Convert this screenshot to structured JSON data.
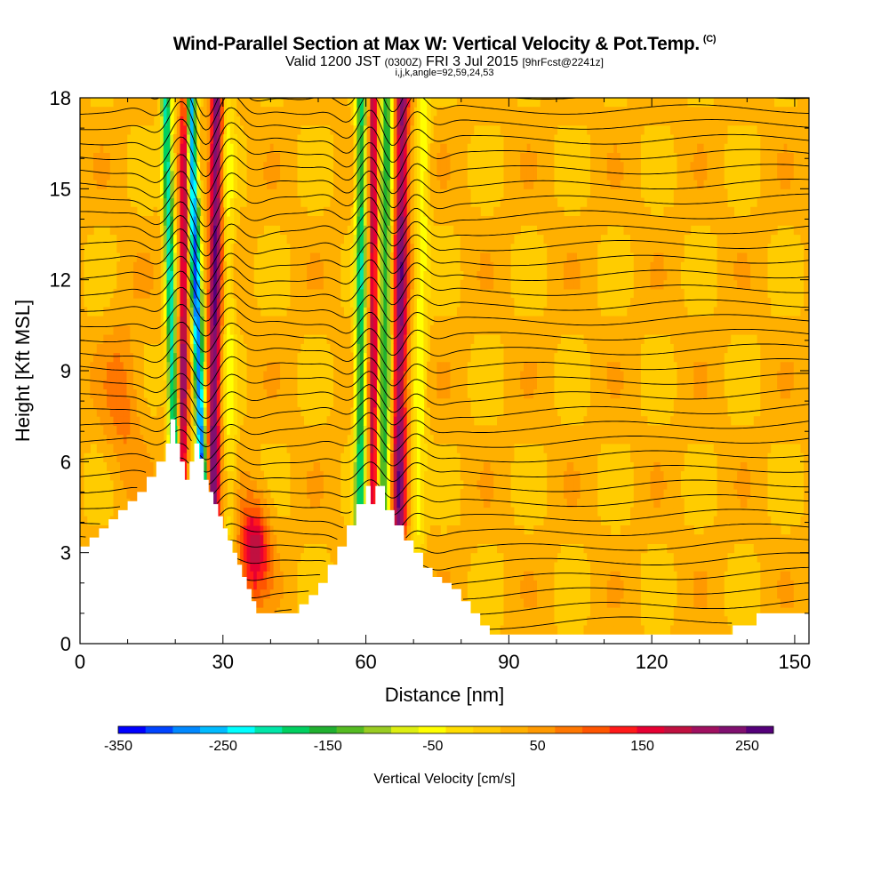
{
  "header": {
    "title": "Wind-Parallel Section at Max W: Vertical Velocity & Pot.Temp.",
    "title_mark": "(C)",
    "valid_prefix": "Valid 1200 JST",
    "valid_utc": "(0300Z)",
    "valid_date": "FRI 3 Jul 2015",
    "forecast": "[9hrFcst@2241z]",
    "indices": "i,j,k,angle=92,59,24,53"
  },
  "chart_data": {
    "type": "heatmap",
    "xlabel": "Distance [nm]",
    "ylabel": "Height [Kft MSL]",
    "xlim": [
      0,
      153
    ],
    "ylim": [
      0,
      18
    ],
    "x_ticks": [
      0,
      30,
      60,
      90,
      120,
      150
    ],
    "y_ticks": [
      0,
      3,
      6,
      9,
      12,
      15,
      18
    ],
    "colorbar": {
      "label": "Vertical Velocity [cm/s]",
      "range": [
        -350,
        275
      ],
      "tick_labels": [
        -350,
        -250,
        -150,
        -50,
        50,
        150,
        250
      ],
      "colors": [
        "#0000ff",
        "#0044ff",
        "#0088ff",
        "#00bbff",
        "#00ffff",
        "#00e6a8",
        "#00d060",
        "#20b030",
        "#55bb22",
        "#99cc22",
        "#ddee11",
        "#ffff00",
        "#ffdd00",
        "#ffcc00",
        "#ffb000",
        "#ff9900",
        "#ff7700",
        "#ff5500",
        "#ff1a1a",
        "#e60033",
        "#c01040",
        "#a01060",
        "#801070",
        "#55007a"
      ]
    },
    "terrain_height_kft": [
      {
        "x": 0,
        "h": 3.2
      },
      {
        "x": 2,
        "h": 3.5
      },
      {
        "x": 4,
        "h": 3.8
      },
      {
        "x": 6,
        "h": 4.1
      },
      {
        "x": 8,
        "h": 4.4
      },
      {
        "x": 10,
        "h": 4.7
      },
      {
        "x": 12,
        "h": 5.0
      },
      {
        "x": 14,
        "h": 5.5
      },
      {
        "x": 16,
        "h": 6.0
      },
      {
        "x": 18,
        "h": 6.6
      },
      {
        "x": 19,
        "h": 7.4
      },
      {
        "x": 20,
        "h": 6.6
      },
      {
        "x": 21,
        "h": 6.0
      },
      {
        "x": 22,
        "h": 5.4
      },
      {
        "x": 23,
        "h": 6.0
      },
      {
        "x": 24,
        "h": 6.6
      },
      {
        "x": 25,
        "h": 6.1
      },
      {
        "x": 26,
        "h": 5.4
      },
      {
        "x": 27,
        "h": 5.0
      },
      {
        "x": 28,
        "h": 4.6
      },
      {
        "x": 29,
        "h": 4.2
      },
      {
        "x": 30,
        "h": 3.8
      },
      {
        "x": 31,
        "h": 3.4
      },
      {
        "x": 32,
        "h": 3.0
      },
      {
        "x": 33,
        "h": 2.6
      },
      {
        "x": 34,
        "h": 2.2
      },
      {
        "x": 35,
        "h": 1.8
      },
      {
        "x": 36,
        "h": 1.4
      },
      {
        "x": 37,
        "h": 1.0
      },
      {
        "x": 40,
        "h": 1.0
      },
      {
        "x": 44,
        "h": 1.0
      },
      {
        "x": 46,
        "h": 1.3
      },
      {
        "x": 48,
        "h": 1.6
      },
      {
        "x": 50,
        "h": 2.0
      },
      {
        "x": 52,
        "h": 2.6
      },
      {
        "x": 54,
        "h": 3.2
      },
      {
        "x": 56,
        "h": 3.9
      },
      {
        "x": 58,
        "h": 4.6
      },
      {
        "x": 60,
        "h": 5.2
      },
      {
        "x": 61,
        "h": 4.6
      },
      {
        "x": 62,
        "h": 5.2
      },
      {
        "x": 64,
        "h": 4.4
      },
      {
        "x": 66,
        "h": 3.9
      },
      {
        "x": 68,
        "h": 3.4
      },
      {
        "x": 70,
        "h": 3.0
      },
      {
        "x": 72,
        "h": 2.5
      },
      {
        "x": 74,
        "h": 2.2
      },
      {
        "x": 76,
        "h": 2.0
      },
      {
        "x": 78,
        "h": 1.8
      },
      {
        "x": 80,
        "h": 1.4
      },
      {
        "x": 82,
        "h": 1.0
      },
      {
        "x": 84,
        "h": 0.6
      },
      {
        "x": 86,
        "h": 0.3
      },
      {
        "x": 100,
        "h": 0.3
      },
      {
        "x": 115,
        "h": 0.3
      },
      {
        "x": 125,
        "h": 0.3
      },
      {
        "x": 135,
        "h": 0.3
      },
      {
        "x": 137,
        "h": 0.6
      },
      {
        "x": 142,
        "h": 1.0
      },
      {
        "x": 153,
        "h": 1.0
      }
    ]
  }
}
